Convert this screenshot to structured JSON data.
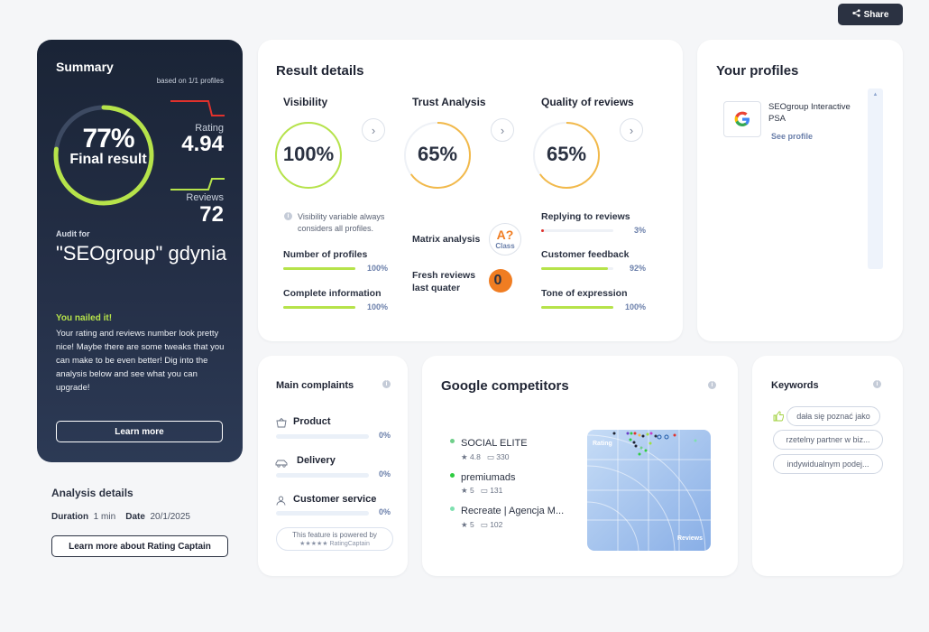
{
  "share": {
    "label": "Share"
  },
  "summary": {
    "title": "Summary",
    "based_on": "based on 1/1 profiles",
    "final_pct": "77%",
    "final_label": "Final result",
    "final_value": 0.77,
    "rating_label": "Rating",
    "rating_value": "4.94",
    "reviews_label": "Reviews",
    "reviews_value": "72",
    "audit_for": "Audit for",
    "audit_name": "\"SEOgroup\" gdynia",
    "nailed": "You nailed it!",
    "description": "Your rating and reviews number look pretty nice! Maybe there are some tweaks that you can make to be even better! Dig into the analysis below and see what you can upgrade!",
    "learn_more": "Learn more",
    "accent_color": "#b6e34a"
  },
  "analysis": {
    "title": "Analysis details",
    "duration_label": "Duration",
    "duration_value": "1 min",
    "date_label": "Date",
    "date_value": "20/1/2025",
    "learn_rc": "Learn more about Rating Captain"
  },
  "result": {
    "title": "Result details",
    "visibility": {
      "title": "Visibility",
      "pct": "100%",
      "value": 1.0,
      "note": "Visibility variable always considers all profiles.",
      "metrics": [
        {
          "label": "Number of profiles",
          "value": "100%",
          "fraction": 1.0,
          "color": "#b6e34a"
        },
        {
          "label": "Complete information",
          "value": "100%",
          "fraction": 1.0,
          "color": "#b6e34a"
        }
      ]
    },
    "trust": {
      "title": "Trust Analysis",
      "pct": "65%",
      "value": 0.65,
      "matrix_label": "Matrix analysis",
      "matrix_grade": "A?",
      "matrix_class": "Class",
      "fresh_label": "Fresh reviews last quater",
      "fresh_value": "0"
    },
    "quality": {
      "title": "Quality of reviews",
      "pct": "65%",
      "value": 0.65,
      "metrics": [
        {
          "label": "Replying to reviews",
          "value": "3%",
          "fraction": 0.03,
          "color": "#e0312c"
        },
        {
          "label": "Customer feedback",
          "value": "92%",
          "fraction": 0.92,
          "color": "#b6e34a"
        },
        {
          "label": "Tone of expression",
          "value": "100%",
          "fraction": 1.0,
          "color": "#b6e34a"
        }
      ]
    }
  },
  "profiles": {
    "title": "Your profiles",
    "items": [
      {
        "name": "SEOgroup Interactive PSA",
        "link": "See profile"
      }
    ]
  },
  "complaints": {
    "title": "Main complaints",
    "items": [
      {
        "label": "Product",
        "value": "0%",
        "icon": "basket-icon"
      },
      {
        "label": "Delivery",
        "value": "0%",
        "icon": "car-icon"
      },
      {
        "label": "Customer service",
        "value": "0%",
        "icon": "person-icon"
      }
    ],
    "powered_line1": "This feature is powered by",
    "powered_line2": "★★★★★ RatingCaptain"
  },
  "competitors": {
    "title": "Google competitors",
    "items": [
      {
        "name": "SOCIAL ELITE",
        "rating": "4.8",
        "reviews": "330",
        "color": "#6fcf8a"
      },
      {
        "name": "premiumads",
        "rating": "5",
        "reviews": "131",
        "color": "#2ecc40"
      },
      {
        "name": "Recreate | Agencja M...",
        "rating": "5",
        "reviews": "102",
        "color": "#7fe0b0"
      }
    ],
    "chart_y_label": "Rating",
    "chart_x_label": "Reviews"
  },
  "keywords": {
    "title": "Keywords",
    "items": [
      "dała się poznać jako",
      "rzetelny partner w biz...",
      "indywidualnym podej..."
    ]
  }
}
